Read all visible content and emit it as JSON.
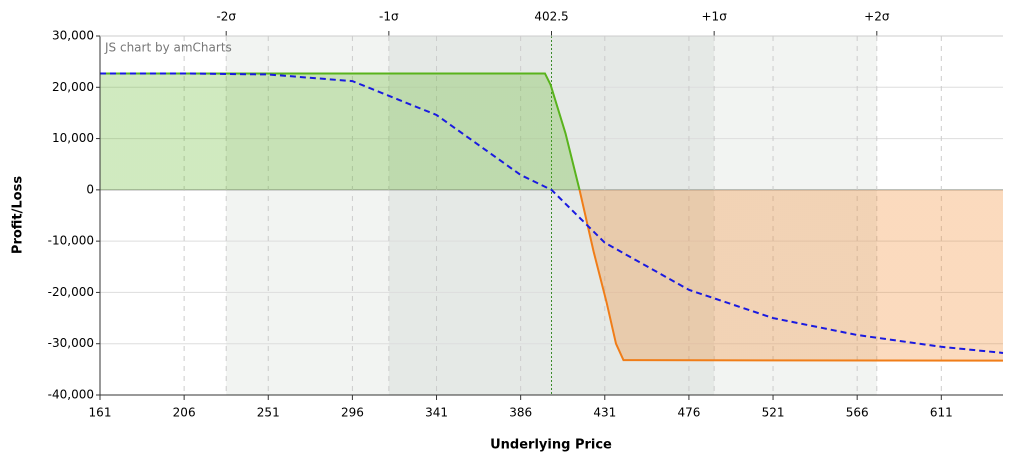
{
  "chart_data": {
    "type": "line",
    "watermark": "JS chart by amCharts",
    "ylabel": "Profit/Loss",
    "xlabel": "Underlying Price",
    "xlim": [
      161,
      644
    ],
    "xticks": [
      161,
      206,
      251,
      296,
      341,
      386,
      431,
      476,
      521,
      566,
      611
    ],
    "x2ticks": [
      {
        "value": 228.5,
        "label": "-2σ"
      },
      {
        "value": 315.5,
        "label": "-1σ"
      },
      402.5,
      {
        "value": 489.5,
        "label": "+1σ"
      },
      {
        "value": 576.5,
        "label": "+2σ"
      }
    ],
    "ylim": [
      -40000,
      30000
    ],
    "yticks": [
      {
        "value": 30000,
        "label": "30,000"
      },
      {
        "value": 20000,
        "label": "20,000"
      },
      {
        "value": 10000,
        "label": "10,000"
      },
      0,
      {
        "value": -10000,
        "label": "-10,000"
      },
      {
        "value": -20000,
        "label": "-20,000"
      },
      {
        "value": -30000,
        "label": "-30,000"
      },
      {
        "value": -40000,
        "label": "-40,000"
      }
    ],
    "grid": true,
    "series": [
      {
        "color": "#59b31c",
        "negative_color": "#f07d18",
        "fill": true,
        "x": [
          161,
          399,
          402,
          410,
          417.5,
          425,
          432,
          437,
          441,
          644
        ],
        "values": [
          22700,
          22700,
          20500,
          11000,
          0,
          -12000,
          -22000,
          -30000,
          -33200,
          -33300
        ]
      },
      {
        "color": "#1a1ae0",
        "dash": true,
        "x": [
          161,
          206,
          251,
          296,
          341,
          386,
          402.5,
          431,
          476,
          521,
          566,
          611,
          644
        ],
        "values": [
          22700,
          22700,
          22500,
          21200,
          14600,
          2900,
          0,
          -10300,
          -19500,
          -25000,
          -28300,
          -30600,
          -31800
        ]
      }
    ]
  }
}
